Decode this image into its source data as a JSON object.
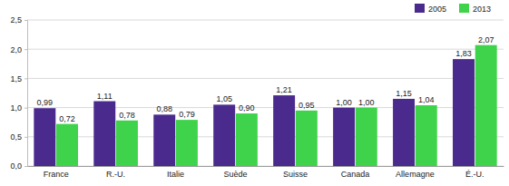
{
  "chart_data": {
    "type": "bar",
    "categories": [
      "France",
      "R.-U.",
      "Italie",
      "Suède",
      "Suisse",
      "Canada",
      "Allemagne",
      "É.-U."
    ],
    "series": [
      {
        "name": "2005",
        "color": "#4b2a8e",
        "values": [
          0.99,
          1.11,
          0.88,
          1.05,
          1.21,
          1.0,
          1.15,
          1.83
        ],
        "value_labels": [
          "0,99",
          "1,11",
          "0,88",
          "1,05",
          "1,21",
          "1,00",
          "1,15",
          "1,83"
        ]
      },
      {
        "name": "2013",
        "color": "#3ed34a",
        "values": [
          0.72,
          0.78,
          0.79,
          0.9,
          0.95,
          1.0,
          1.04,
          2.07
        ],
        "value_labels": [
          "0,72",
          "0,78",
          "0,79",
          "0,90",
          "0,95",
          "1,00",
          "1,04",
          "2,07"
        ]
      }
    ],
    "ylim": [
      0,
      2.5
    ],
    "yticks": [
      {
        "value": 0,
        "label": "0,0"
      },
      {
        "value": 0.5,
        "label": "0,5"
      },
      {
        "value": 1,
        "label": "1,0"
      },
      {
        "value": 1.5,
        "label": "1,5"
      },
      {
        "value": 2,
        "label": "2,0"
      },
      {
        "value": 2.5,
        "label": "2,5"
      }
    ],
    "grid": true,
    "legend": "top-right",
    "data_labels": true
  }
}
